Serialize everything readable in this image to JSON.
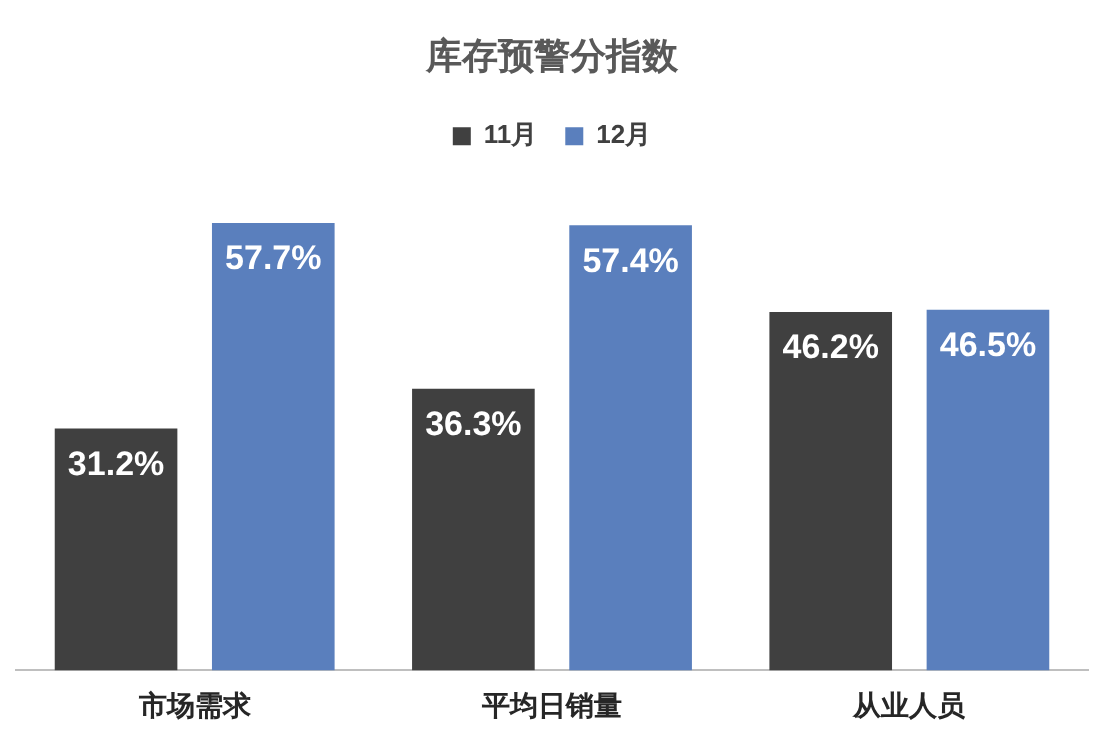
{
  "chart_data": {
    "type": "bar",
    "title": "库存预警分指数",
    "categories": [
      "市场需求",
      "平均日销量",
      "从业人员"
    ],
    "series": [
      {
        "name": "11月",
        "color": "#404040",
        "values": [
          31.2,
          36.3,
          46.2
        ],
        "value_labels": [
          "31.2%",
          "36.3%",
          "46.2%"
        ]
      },
      {
        "name": "12月",
        "color": "#5a7fbd",
        "values": [
          57.7,
          57.4,
          46.5
        ],
        "value_labels": [
          "57.7%",
          "57.4%",
          "46.5%"
        ]
      }
    ],
    "legend": "top",
    "grid": false,
    "tick_labels": "x"
  }
}
